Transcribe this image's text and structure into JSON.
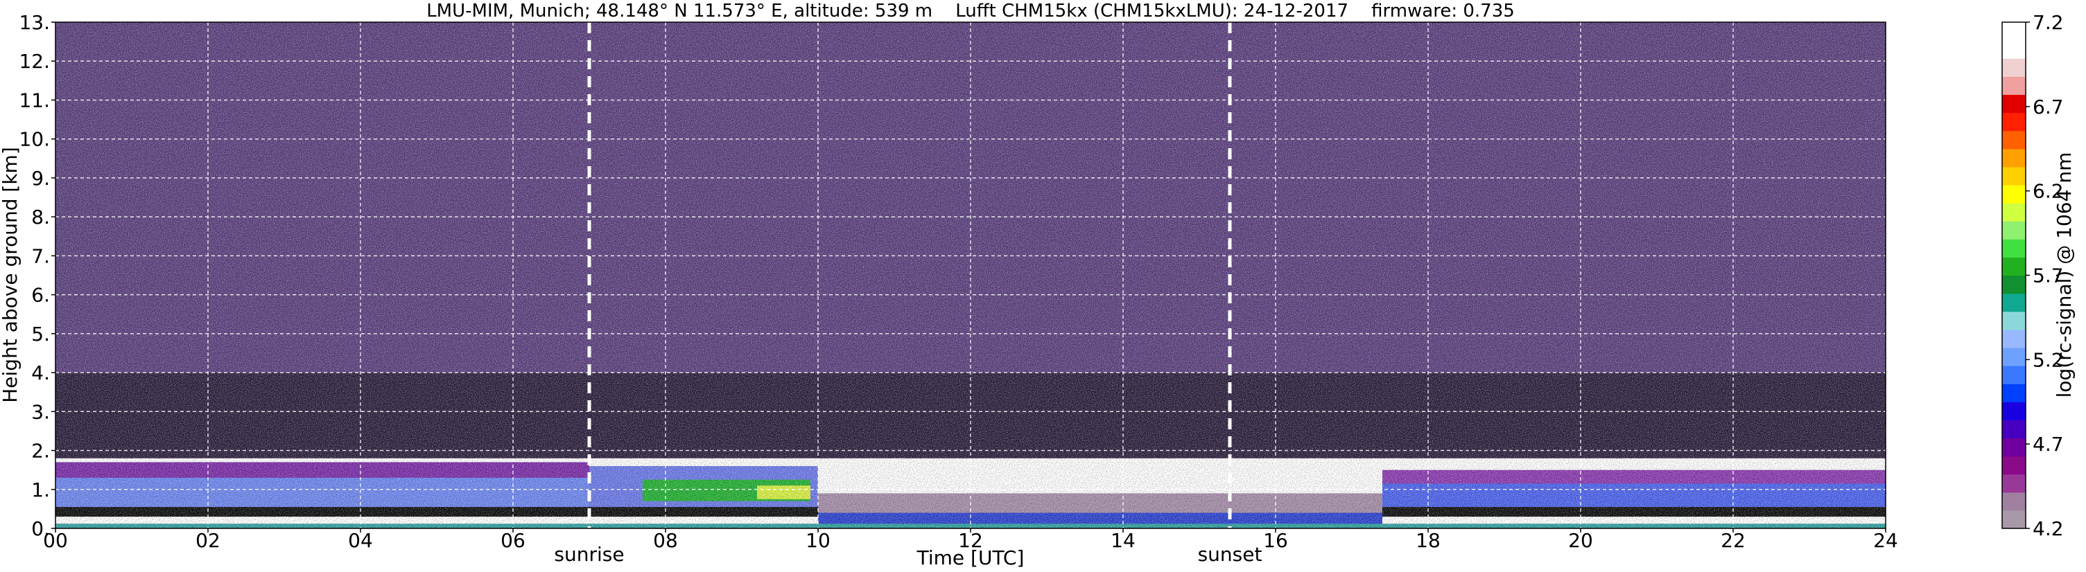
{
  "chart_data": {
    "type": "heatmap",
    "title": "LMU-MIM, Munich; 48.148° N 11.573° E, altitude: 539 m    Lufft CHM15kx (CHM15kxLMU): 24-12-2017    firmware: 0.735",
    "xlabel": "Time [UTC]",
    "ylabel": "Height above ground [km]",
    "xlim": [
      0,
      24
    ],
    "ylim": [
      0,
      13
    ],
    "x_ticks": [
      {
        "value": 0,
        "label": "00"
      },
      {
        "value": 2,
        "label": "02"
      },
      {
        "value": 4,
        "label": "04"
      },
      {
        "value": 6,
        "label": "06"
      },
      {
        "value": 8,
        "label": "08"
      },
      {
        "value": 10,
        "label": "10"
      },
      {
        "value": 12,
        "label": "12"
      },
      {
        "value": 14,
        "label": "14"
      },
      {
        "value": 16,
        "label": "16"
      },
      {
        "value": 18,
        "label": "18"
      },
      {
        "value": 20,
        "label": "20"
      },
      {
        "value": 22,
        "label": "22"
      },
      {
        "value": 24,
        "label": "24"
      }
    ],
    "y_ticks": [
      {
        "value": 0,
        "label": "0."
      },
      {
        "value": 1,
        "label": "1."
      },
      {
        "value": 2,
        "label": "2."
      },
      {
        "value": 3,
        "label": "3."
      },
      {
        "value": 4,
        "label": "4."
      },
      {
        "value": 5,
        "label": "5."
      },
      {
        "value": 6,
        "label": "6."
      },
      {
        "value": 7,
        "label": "7."
      },
      {
        "value": 8,
        "label": "8."
      },
      {
        "value": 9,
        "label": "9."
      },
      {
        "value": 10,
        "label": "10."
      },
      {
        "value": 11,
        "label": "11."
      },
      {
        "value": 12,
        "label": "12."
      },
      {
        "value": 13,
        "label": "13."
      }
    ],
    "grid": true,
    "events": [
      {
        "label": "sunrise",
        "x": 7.0
      },
      {
        "label": "sunset",
        "x": 15.4
      }
    ],
    "colorbar": {
      "label": "log(rc-signal) @ 1064 nm",
      "range": [
        4.2,
        7.2
      ],
      "ticks": [
        {
          "value": 4.2,
          "label": "4.2"
        },
        {
          "value": 4.7,
          "label": "4.7"
        },
        {
          "value": 5.2,
          "label": "5.2"
        },
        {
          "value": 5.7,
          "label": "5.7"
        },
        {
          "value": 6.2,
          "label": "6.2"
        },
        {
          "value": 6.7,
          "label": "6.7"
        },
        {
          "value": 7.2,
          "label": "7.2"
        }
      ],
      "colors": [
        "#a898a8",
        "#a080a0",
        "#983898",
        "#8a0a8a",
        "#7000a0",
        "#4800c0",
        "#1800e0",
        "#0040ff",
        "#3a78ff",
        "#6ea0ff",
        "#98b8ff",
        "#8cd8d8",
        "#10a890",
        "#109030",
        "#20b020",
        "#40e040",
        "#90f070",
        "#d0ff40",
        "#ffff00",
        "#ffd000",
        "#ffa000",
        "#ff6000",
        "#ff2000",
        "#e00000",
        "#f0a0a0",
        "#f0d0d0",
        "#ffffff",
        "#ffffff"
      ]
    },
    "layers": [
      {
        "feature": "background noise",
        "t_start": 0,
        "t_end": 24,
        "h_bottom": 4.0,
        "h_top": 13,
        "color": "#5a3f7e"
      },
      {
        "feature": "dark noise band",
        "t_start": 0,
        "t_end": 24,
        "h_bottom": 1.8,
        "h_top": 4.0,
        "color": "#2a1e3c"
      },
      {
        "feature": "cloud layer",
        "t_start": 0,
        "t_end": 7.0,
        "h_bottom": 0.55,
        "h_top": 1.5,
        "color": "#6c86f0"
      },
      {
        "feature": "cloud layer top",
        "t_start": 0,
        "t_end": 7.0,
        "h_bottom": 1.3,
        "h_top": 1.7,
        "color": "#7a2aa8"
      },
      {
        "feature": "cloud layer",
        "t_start": 7.0,
        "t_end": 10.0,
        "h_bottom": 0.55,
        "h_top": 1.6,
        "color": "#6a78e8"
      },
      {
        "feature": "green core",
        "t_start": 7.7,
        "t_end": 9.9,
        "h_bottom": 0.7,
        "h_top": 1.25,
        "color": "#20b030"
      },
      {
        "feature": "yellow core",
        "t_start": 9.2,
        "t_end": 9.9,
        "h_bottom": 0.75,
        "h_top": 1.1,
        "color": "#d8f040"
      },
      {
        "feature": "black attenuated",
        "t_start": 0,
        "t_end": 10.0,
        "h_bottom": 0.3,
        "h_top": 0.55,
        "color": "#0a0a0a"
      },
      {
        "feature": "boundary layer",
        "t_start": 10.0,
        "t_end": 17.4,
        "h_bottom": 0.35,
        "h_top": 0.9,
        "color": "#a48ca8"
      },
      {
        "feature": "near-surface layer",
        "t_start": 10.0,
        "t_end": 17.4,
        "h_bottom": 0.05,
        "h_top": 0.4,
        "color": "#2a40d0"
      },
      {
        "feature": "cloud layer",
        "t_start": 17.4,
        "t_end": 24,
        "h_bottom": 0.55,
        "h_top": 1.4,
        "color": "#4a62ee"
      },
      {
        "feature": "cloud layer top",
        "t_start": 17.4,
        "t_end": 24,
        "h_bottom": 1.15,
        "h_top": 1.5,
        "color": "#8a38b0"
      },
      {
        "feature": "black attenuated",
        "t_start": 17.4,
        "t_end": 24,
        "h_bottom": 0.3,
        "h_top": 0.55,
        "color": "#0a0a0a"
      },
      {
        "feature": "surface layer",
        "t_start": 0,
        "t_end": 24,
        "h_bottom": 0.0,
        "h_top": 0.12,
        "color": "#30a0a0"
      }
    ]
  }
}
